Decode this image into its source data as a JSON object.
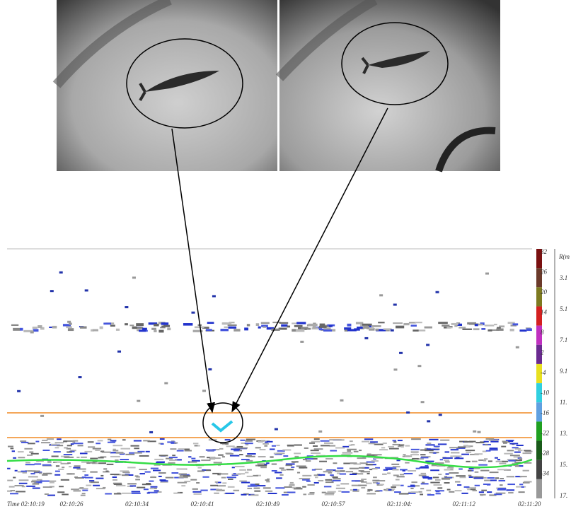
{
  "time_axis": {
    "labels": [
      "Time 02:10:19",
      "02:10:26",
      "02:10:34",
      "02:10:41",
      "02:10:49",
      "02:10:57",
      "02:11:04:",
      "02:11:12",
      "02:11:20"
    ]
  },
  "color_scale": {
    "labels": [
      "32",
      "26",
      "20",
      "14",
      "8",
      "2",
      "-4",
      "-10",
      "-16",
      "-22",
      "-28",
      "-34"
    ]
  },
  "range_axis": {
    "title": "R(m",
    "labels": [
      "3.1",
      "5.1",
      "7.1",
      "9.1",
      "11.",
      "13.",
      "15.",
      "17."
    ]
  }
}
